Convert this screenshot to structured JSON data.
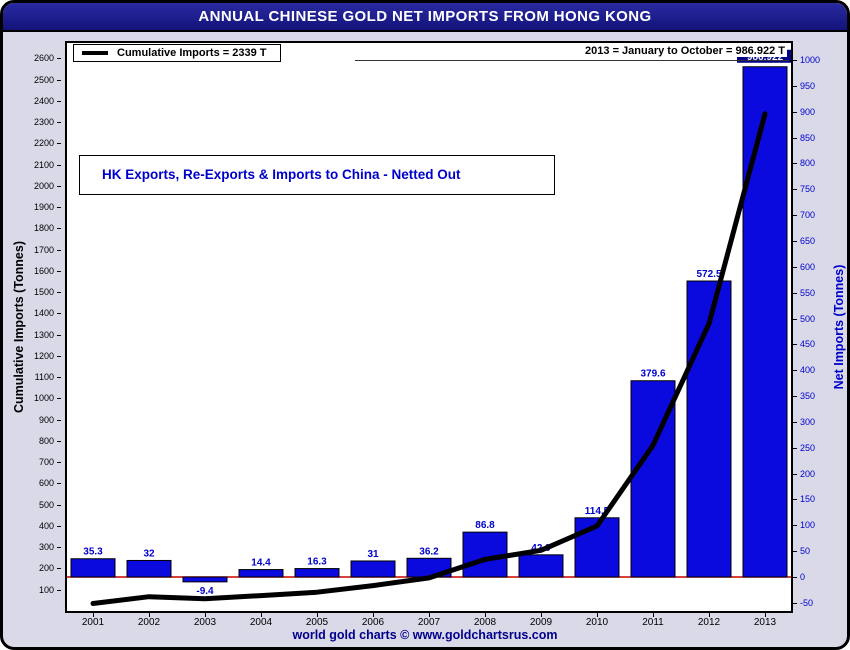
{
  "title": "ANNUAL CHINESE GOLD NET IMPORTS FROM HONG KONG",
  "legend": {
    "label": "Cumulative Imports = 2339 T"
  },
  "header_note": "2013 = January to October = 986.922 T",
  "annotation": "HK Exports, Re-Exports & Imports to China - Netted Out",
  "footer": "world gold charts © www.goldchartsrus.com",
  "axes": {
    "left_title": "Cumulative Imports (Tonnes)",
    "right_title": "Net Imports (Tonnes)"
  },
  "colors": {
    "bar": "#0a0adf",
    "bar_label": "#0000cd",
    "line": "#000000",
    "zero_line": "#cc0000",
    "right_axis": "#0000cd",
    "title_bar": "#1b1b82",
    "footer_text": "#00008b",
    "badge": "#00008b"
  },
  "chart_data": {
    "type": "bar+line",
    "title": "ANNUAL CHINESE GOLD NET IMPORTS FROM HONG KONG",
    "categories": [
      "2001",
      "2002",
      "2003",
      "2004",
      "2005",
      "2006",
      "2007",
      "2008",
      "2009",
      "2010",
      "2011",
      "2012",
      "2013"
    ],
    "series": [
      {
        "name": "Net Imports",
        "type": "bar",
        "axis": "right",
        "values": [
          35.3,
          32,
          -9.4,
          14.4,
          16.3,
          31,
          36.2,
          86.8,
          42.9,
          114.5,
          379.6,
          572.5,
          986.922
        ],
        "labels": [
          "35.3",
          "32",
          "-9.4",
          "14.4",
          "16.3",
          "31",
          "36.2",
          "86.8",
          "42.9",
          "114.5",
          "379.6",
          "572.5",
          "986.922"
        ]
      },
      {
        "name": "Cumulative Imports",
        "type": "line",
        "axis": "left",
        "values": [
          35.3,
          67.3,
          57.9,
          72.3,
          88.6,
          119.6,
          155.8,
          242.6,
          285.5,
          400.0,
          779.6,
          1352.1,
          2339.0
        ]
      }
    ],
    "left_axis": {
      "min": 0,
      "max": 2672,
      "ticks_start": 100,
      "ticks_end": 2600,
      "step": 100
    },
    "right_axis": {
      "ticks_start": -50,
      "ticks_end": 1000,
      "step": 50,
      "zero_line": 0
    },
    "grid": false,
    "legend_position": "top-left"
  }
}
